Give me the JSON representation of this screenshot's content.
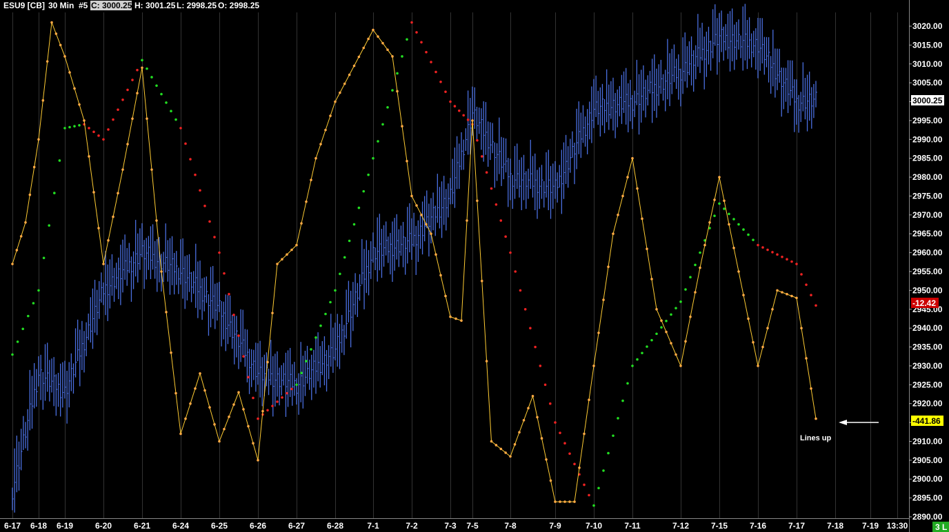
{
  "header": {
    "symbol": "ESU9 [CB]",
    "interval": "30 Min",
    "bar_number": "#5",
    "close": "C: 3000.25",
    "high": "H: 3001.25",
    "low": "L: 2998.25",
    "open": "O: 2998.25"
  },
  "annotation": {
    "text": "Lines up"
  },
  "corner_badge": "3 L",
  "colors": {
    "background": "#000000",
    "price_bars": "#4a6fe0",
    "oscillator": "#ffcc33",
    "oscillator_dots": "#ffaa44",
    "signal_rising": "#22dd22",
    "signal_falling": "#ee2222",
    "gridline": "#333333",
    "current_price_badge": "#ffffff",
    "signal_badge": "#cc0000",
    "oscillator_badge": "#ffff00"
  },
  "chart_data": {
    "type": "line",
    "instrument": "ESU9 30 Min",
    "x_tick_labels": [
      "6-17",
      "6-18",
      "6-19",
      "6-20",
      "6-21",
      "6-24",
      "6-25",
      "6-26",
      "6-27",
      "6-28",
      "7-1",
      "7-2",
      "7-3",
      "7-5",
      "7-8",
      "7-9",
      "7-10",
      "7-11",
      "7-12",
      "7-15",
      "7-16",
      "7-17",
      "7-18",
      "7-19",
      "13:30"
    ],
    "y_tick_labels": [
      "3020.00",
      "3015.00",
      "3010.00",
      "3005.00",
      "3000.00",
      "2995.00",
      "2990.00",
      "2985.00",
      "2980.00",
      "2975.00",
      "2970.00",
      "2965.00",
      "2960.00",
      "2955.00",
      "2950.00",
      "2945.00",
      "2940.00",
      "2935.00",
      "2930.00",
      "2925.00",
      "2920.00",
      "2915.00",
      "2910.00",
      "2905.00",
      "2900.00",
      "2895.00",
      "2890.00"
    ],
    "ylim": [
      2890,
      3022
    ],
    "current_price_label": "3000.25",
    "signal_value_label": "-12.42",
    "oscillator_value_label": "-441.86",
    "price_series": {
      "name": "ESU9",
      "x": [
        "6-17",
        "6-18",
        "6-19",
        "6-20",
        "6-21",
        "6-24",
        "6-25",
        "6-26",
        "6-27",
        "6-28",
        "7-1",
        "7-2",
        "7-3",
        "7-5",
        "7-8",
        "7-9",
        "7-10",
        "7-11",
        "7-12",
        "7-15",
        "7-16",
        "7-17",
        "7-17"
      ],
      "values": [
        2897,
        2928,
        2923,
        2950,
        2960,
        2955,
        2945,
        2928,
        2925,
        2934,
        2960,
        2963,
        2975,
        2997,
        2980,
        2977,
        2998,
        3000,
        3008,
        3017,
        3015,
        3000,
        3000.25
      ]
    },
    "oscillator_series": {
      "x": [
        "6-17",
        "6-17",
        "6-18",
        "6-18",
        "6-19",
        "6-19",
        "6-20",
        "6-20",
        "6-21",
        "6-21",
        "6-24",
        "6-24",
        "6-25",
        "6-25",
        "6-26",
        "6-26",
        "6-27",
        "6-27",
        "6-28",
        "7-1",
        "7-1",
        "7-2",
        "7-2",
        "7-3",
        "7-3",
        "7-5",
        "7-5",
        "7-8",
        "7-8",
        "7-9",
        "7-9",
        "7-10",
        "7-10",
        "7-11",
        "7-11",
        "7-12",
        "7-12",
        "7-15",
        "7-15",
        "7-16",
        "7-16",
        "7-17",
        "7-17"
      ],
      "values": [
        2957,
        2968,
        2990,
        3021,
        3012,
        2995,
        2957,
        2982,
        3009,
        2955,
        2912,
        2928,
        2910,
        2923,
        2905,
        2957,
        2962,
        2985,
        3000,
        3019,
        3012,
        2975,
        2965,
        2943,
        2942,
        2995,
        2910,
        2906,
        2922,
        2894,
        2894,
        2930,
        2965,
        2985,
        2945,
        2930,
        2956,
        2980,
        2955,
        2930,
        2950,
        2948,
        2916
      ]
    },
    "signal_series": {
      "x": [
        "6-17",
        "6-18",
        "6-19",
        "6-19",
        "6-20",
        "6-21",
        "6-24",
        "6-25",
        "6-26",
        "6-27",
        "6-28",
        "7-1",
        "7-2",
        "7-3",
        "7-5",
        "7-8",
        "7-9",
        "7-10",
        "7-11",
        "7-12",
        "7-15",
        "7-16",
        "7-17",
        "7-17"
      ],
      "values": [
        2933,
        2950,
        2993,
        2994,
        2990,
        3011,
        2993,
        2960,
        2916,
        2925,
        2950,
        2985,
        3021,
        3000,
        2994,
        2960,
        2915,
        2893,
        2930,
        2947,
        2973,
        2962,
        2957,
        2946
      ],
      "colors": [
        "rising",
        "rising",
        "rising",
        "falling",
        "falling",
        "rising",
        "falling",
        "falling",
        "falling",
        "rising",
        "rising",
        "rising",
        "falling",
        "falling",
        "falling",
        "falling",
        "falling",
        "rising",
        "rising",
        "rising",
        "rising",
        "falling",
        "falling",
        "falling"
      ]
    }
  }
}
